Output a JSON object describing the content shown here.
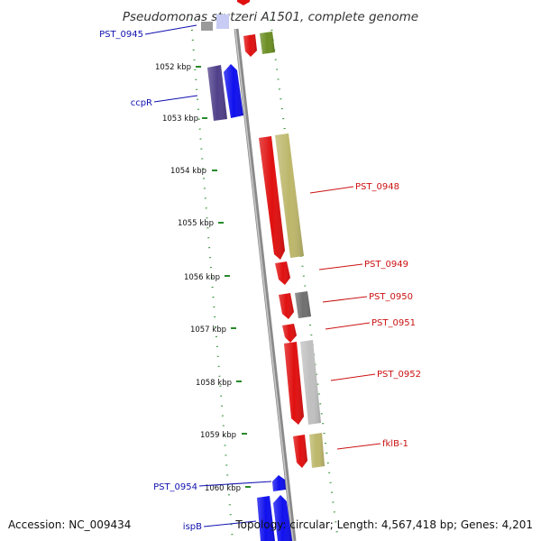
{
  "title": "Pseudomonas stutzeri A1501, complete genome",
  "footer": {
    "accession": "Accession: NC_009434",
    "summary": "Topology: circular; Length: 4,567,418 bp; Genes: 4,201"
  },
  "ticks": [
    "1052 kbp",
    "1053 kbp",
    "1054 kbp",
    "1055 kbp",
    "1056 kbp",
    "1057 kbp",
    "1058 kbp",
    "1059 kbp",
    "1060 kbp"
  ],
  "gene_labels": {
    "PST_0945": "PST_0945",
    "ccpR": "ccpR",
    "PST_0948": "PST_0948",
    "PST_0949": "PST_0949",
    "PST_0950": "PST_0950",
    "PST_0951": "PST_0951",
    "PST_0952": "PST_0952",
    "fklB_1": "fklB-1",
    "PST_0954": "PST_0954",
    "ispB": "ispB"
  },
  "colors": {
    "backbone": "#8a8a8a",
    "ring_dots": "#2a8a2a",
    "forward_label": "#1010b0",
    "reverse_label": "#cc1111",
    "gene_red": "#e01010",
    "gene_blue": "#1010ee",
    "gene_purple": "#50408a",
    "gene_khaki": "#bdb76b",
    "gene_olive": "#6b8e23",
    "gene_grey": "#707070",
    "gene_lightgrey": "#c0c0c0"
  }
}
